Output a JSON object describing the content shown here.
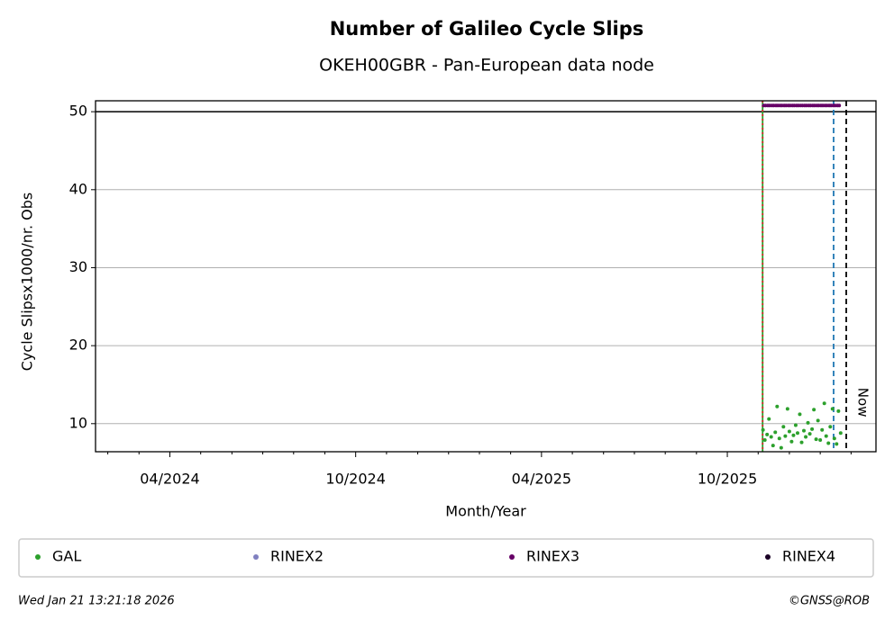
{
  "chart_data": {
    "type": "scatter",
    "title": "Number of Galileo Cycle Slips",
    "subtitle": "OKEH00GBR - Pan-European data node",
    "x_label": "Month/Year",
    "y_label": "Cycle Slipsx1000/nr. Obs",
    "xlim": [
      2024.05,
      2026.15
    ],
    "ylim": [
      6.4,
      51.4
    ],
    "xticks": [
      {
        "value": 2024.25,
        "label": "04/2024"
      },
      {
        "value": 2024.75,
        "label": "10/2024"
      },
      {
        "value": 2025.25,
        "label": "04/2025"
      },
      {
        "value": 2025.75,
        "label": "10/2025"
      }
    ],
    "xminorticks": [
      2024.083,
      2024.167,
      2024.333,
      2024.417,
      2024.5,
      2024.583,
      2024.667,
      2024.833,
      2024.917,
      2025.0,
      2025.083,
      2025.167,
      2025.333,
      2025.417,
      2025.5,
      2025.583,
      2025.667,
      2025.833,
      2025.917,
      2026.0,
      2026.083
    ],
    "yticks": [
      10,
      20,
      30,
      40,
      50
    ],
    "grid": true,
    "hlines": [
      50
    ],
    "vlines": [
      {
        "x": 2025.845,
        "color": "#2ca02c",
        "dash": "none"
      },
      {
        "x": 2025.845,
        "color": "#d62728",
        "dash": "2,3"
      },
      {
        "x": 2026.036,
        "color": "#1f77b4",
        "dash": "6,4"
      },
      {
        "x": 2026.07,
        "color": "#000000",
        "dash": "6,4",
        "label": "Now"
      }
    ],
    "series": [
      {
        "name": "GAL",
        "color": "#2ca02c",
        "x": [
          2025.846,
          2025.851,
          2025.857,
          2025.862,
          2025.868,
          2025.873,
          2025.879,
          2025.884,
          2025.89,
          2025.895,
          2025.901,
          2025.906,
          2025.912,
          2025.917,
          2025.923,
          2025.928,
          2025.934,
          2025.939,
          2025.945,
          2025.95,
          2025.956,
          2025.961,
          2025.967,
          2025.972,
          2025.978,
          2025.983,
          2025.989,
          2025.994,
          2026.0,
          2026.005,
          2026.011,
          2026.016,
          2026.022,
          2026.027,
          2026.033,
          2026.038,
          2026.044,
          2026.049,
          2026.055
        ],
        "values": [
          9.2,
          7.9,
          8.6,
          10.6,
          8.3,
          7.2,
          8.9,
          12.2,
          8.1,
          6.9,
          9.6,
          8.4,
          11.9,
          9.0,
          7.7,
          8.5,
          9.8,
          8.8,
          11.2,
          7.6,
          9.1,
          8.3,
          10.1,
          8.7,
          9.3,
          11.8,
          8.0,
          10.4,
          7.9,
          9.2,
          12.6,
          8.4,
          7.5,
          9.6,
          11.9,
          8.1,
          7.4,
          11.6,
          8.8
        ]
      },
      {
        "name": "RINEX2",
        "color": "#8080c0",
        "x": [],
        "values": []
      },
      {
        "name": "RINEX3",
        "color": "#660066",
        "x": [
          2025.848,
          2025.853,
          2025.859,
          2025.864,
          2025.87,
          2025.875,
          2025.881,
          2025.886,
          2025.892,
          2025.897,
          2025.903,
          2025.908,
          2025.914,
          2025.919,
          2025.925,
          2025.93,
          2025.936,
          2025.941,
          2025.947,
          2025.952,
          2025.958,
          2025.963,
          2025.969,
          2025.974,
          2025.98,
          2025.985,
          2025.991,
          2025.996,
          2026.002,
          2026.007,
          2026.013,
          2026.018,
          2026.024,
          2026.029,
          2026.035,
          2026.04,
          2026.046,
          2026.051
        ],
        "values": [
          50.8,
          50.8,
          50.8,
          50.8,
          50.8,
          50.8,
          50.8,
          50.8,
          50.8,
          50.8,
          50.8,
          50.8,
          50.8,
          50.8,
          50.8,
          50.8,
          50.8,
          50.8,
          50.8,
          50.8,
          50.8,
          50.8,
          50.8,
          50.8,
          50.8,
          50.8,
          50.8,
          50.8,
          50.8,
          50.8,
          50.8,
          50.8,
          50.8,
          50.8,
          50.8,
          50.8,
          50.8,
          50.8
        ]
      },
      {
        "name": "RINEX4",
        "color": "#1a0026",
        "x": [],
        "values": []
      }
    ],
    "timestamp": "Wed Jan 21 13:21:18 2026",
    "credit": "©GNSS@ROB"
  }
}
